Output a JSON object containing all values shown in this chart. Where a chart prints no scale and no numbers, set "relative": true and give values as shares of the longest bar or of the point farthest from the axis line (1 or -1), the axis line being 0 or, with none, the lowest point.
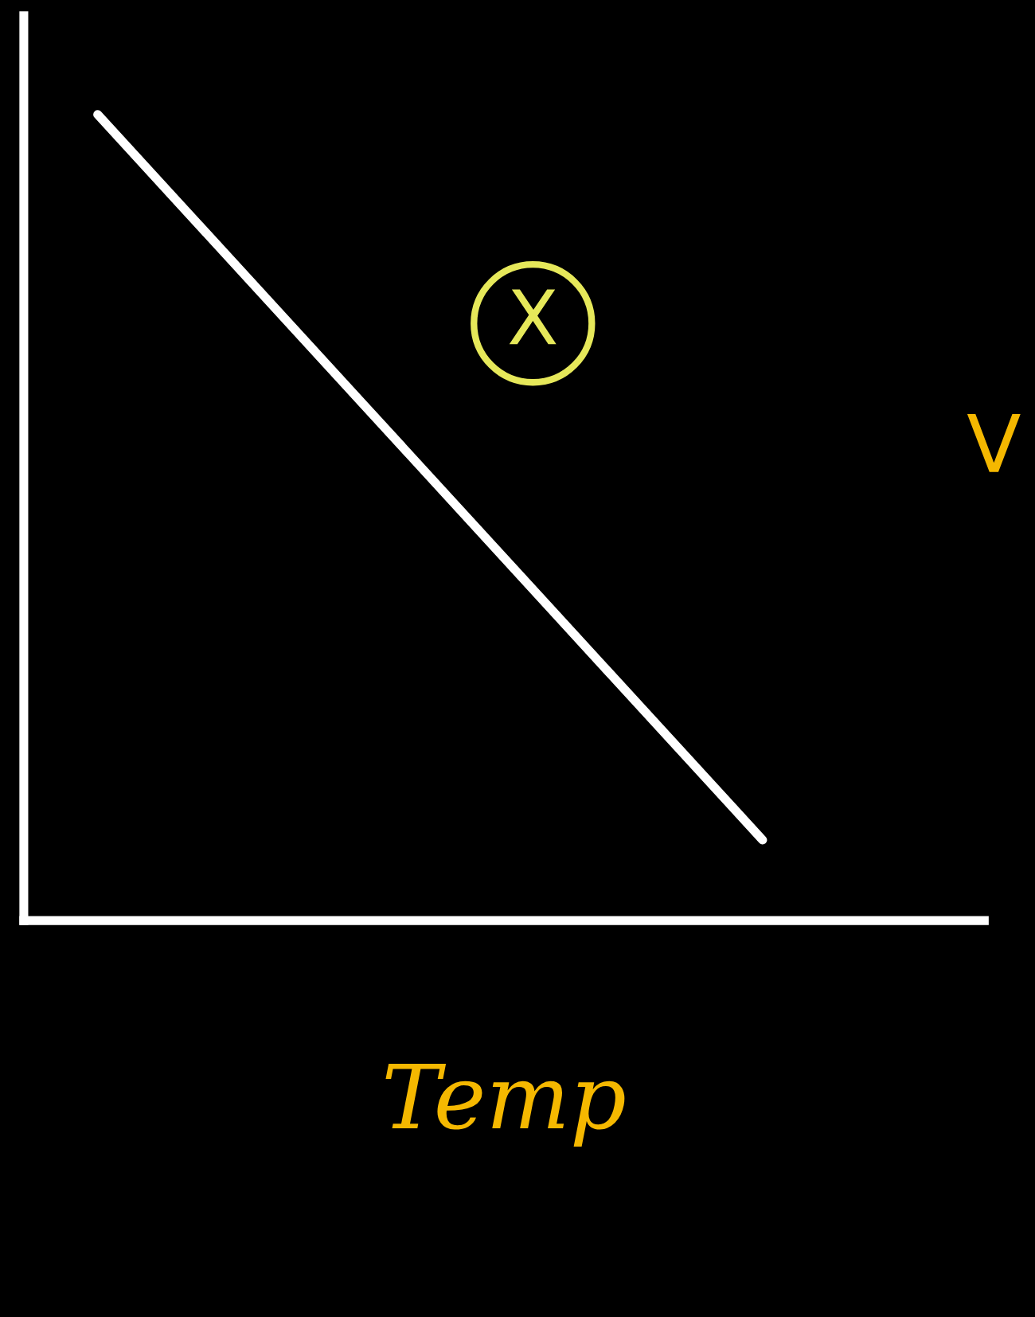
{
  "chart_data": {
    "type": "line",
    "relative": true,
    "categories": [
      null,
      null,
      null,
      null,
      null,
      null,
      null,
      null,
      null,
      null,
      null,
      null,
      null,
      null
    ],
    "series": [
      {
        "color": "#ffffff",
        "values": [
          null,
          1,
          null,
          null,
          null,
          null,
          null,
          null,
          null,
          null,
          0.1,
          null,
          null,
          null
        ]
      }
    ],
    "xlabel": "Temp",
    "ylabel": "V",
    "annotations": [
      "X"
    ],
    "grid": false,
    "legend": false,
    "marker": "none",
    "line_style": "solid"
  }
}
